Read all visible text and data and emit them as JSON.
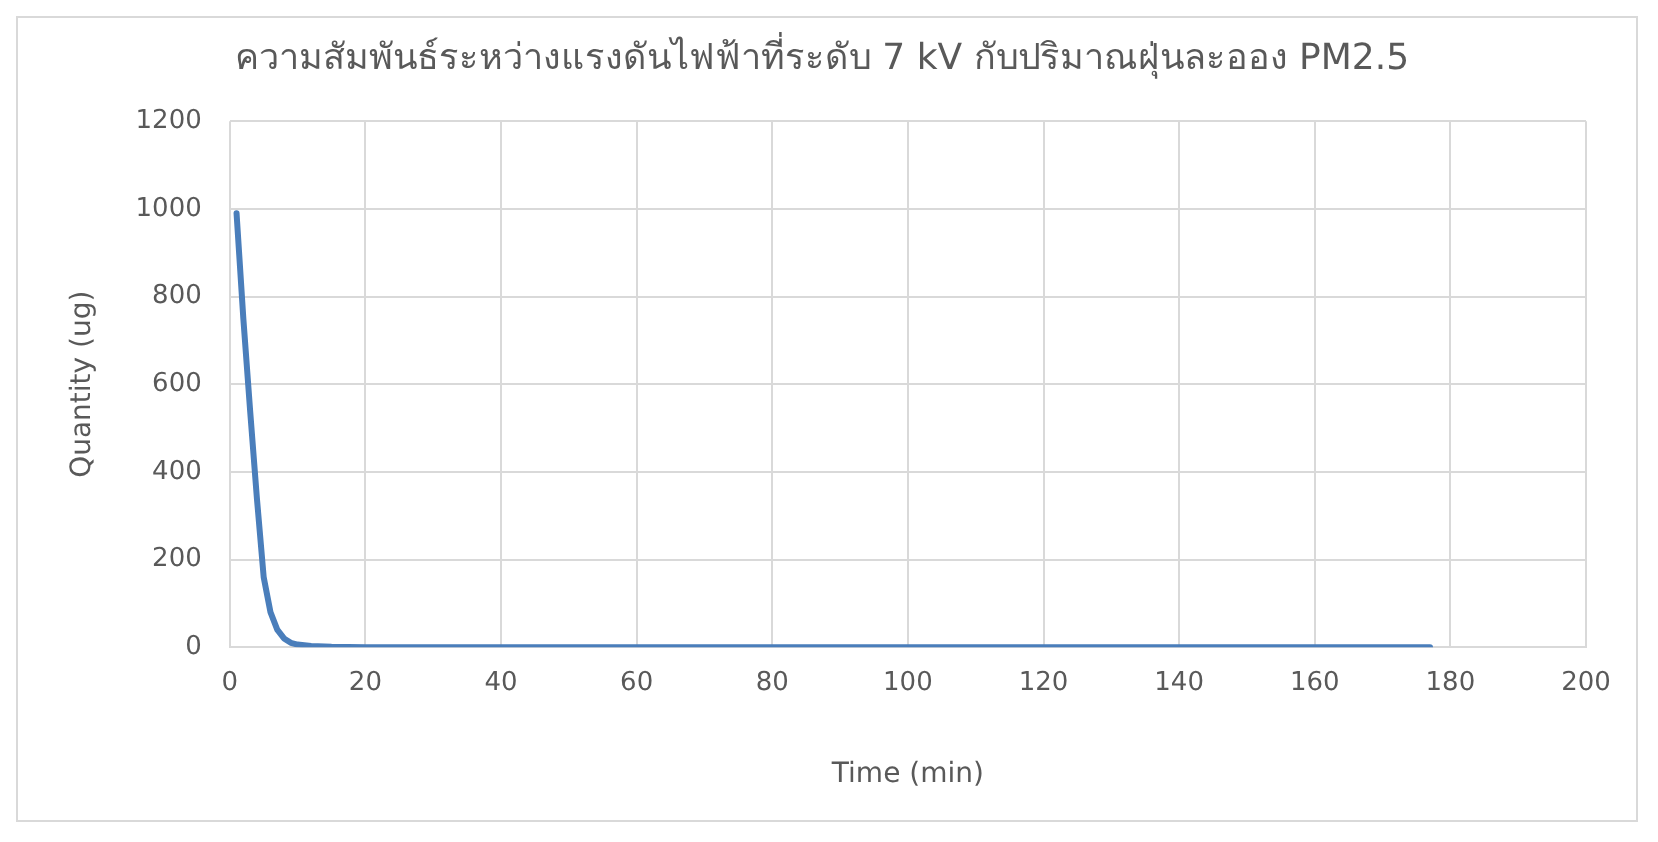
{
  "chart_data": {
    "type": "line",
    "title": "ความสัมพันธ์ระหว่างแรงดันไฟฟ้าที่ระดับ 7 kV กับปริมาณฝุ่นละออง PM2.5",
    "xlabel": "Time (min)",
    "ylabel": "Quantity (ug)",
    "x": [
      1,
      2,
      3,
      4,
      5,
      6,
      7,
      8,
      9,
      10,
      12,
      15,
      20,
      40,
      80,
      120,
      160,
      177
    ],
    "series": [
      {
        "color": "#4a7ebb",
        "values": [
          990,
          750,
          540,
          340,
          160,
          80,
          40,
          20,
          10,
          6,
          3,
          1,
          0,
          0,
          0,
          0,
          0,
          0
        ]
      }
    ],
    "xlim": [
      0,
      200
    ],
    "xticks": [
      0,
      20,
      40,
      60,
      80,
      100,
      120,
      140,
      160,
      180,
      200
    ],
    "ylim": [
      0,
      1200
    ],
    "yticks": [
      0,
      200,
      400,
      600,
      800,
      1000,
      1200
    ],
    "grid": true,
    "legend": false,
    "marker": "none",
    "line_style": "solid"
  }
}
